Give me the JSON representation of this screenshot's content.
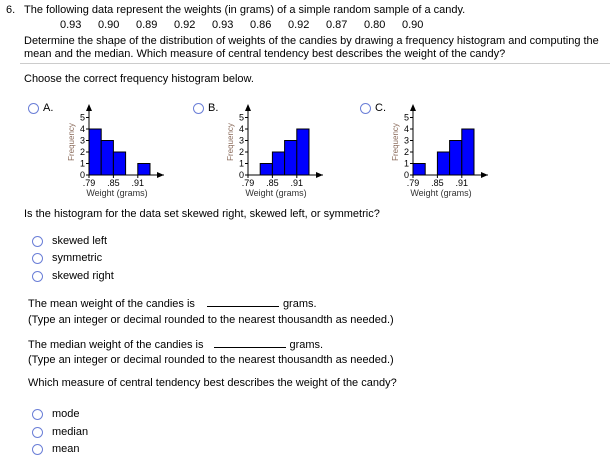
{
  "question": {
    "number": "6.",
    "intro": "The following data represent the weights (in grams) of a simple random sample of a candy.",
    "data_values": [
      "0.93",
      "0.90",
      "0.89",
      "0.92",
      "0.93",
      "0.86",
      "0.92",
      "0.87",
      "0.80",
      "0.90"
    ],
    "instructions_line1": "Determine the shape of the distribution of weights of the candies by drawing a frequency histogram and computing the",
    "instructions_line2": "mean and the median. Which measure of central tendency best describes the weight of the candy?"
  },
  "part1": {
    "prompt": "Choose the correct frequency histogram below."
  },
  "chart_data": [
    {
      "type": "bar",
      "option": "A.",
      "bin_edges": [
        0.79,
        0.82,
        0.85,
        0.88,
        0.91,
        0.94
      ],
      "values": [
        4,
        3,
        2,
        0,
        1
      ],
      "xlabel": "Weight (grams)",
      "ylabel": "Frequency",
      "xticks": [
        ".79",
        ".85",
        ".91"
      ],
      "yticks": [
        "0",
        "1",
        "2",
        "3",
        "4",
        "5"
      ],
      "ylim": [
        0,
        5
      ],
      "bar_color": "#0000ff"
    },
    {
      "type": "bar",
      "option": "B.",
      "bin_edges": [
        0.79,
        0.82,
        0.85,
        0.88,
        0.91,
        0.94
      ],
      "values": [
        0,
        1,
        2,
        3,
        4
      ],
      "xlabel": "Weight (grams)",
      "ylabel": "Frequency",
      "xticks": [
        ".79",
        ".85",
        ".91"
      ],
      "yticks": [
        "0",
        "1",
        "2",
        "3",
        "4",
        "5"
      ],
      "ylim": [
        0,
        5
      ],
      "bar_color": "#0000ff"
    },
    {
      "type": "bar",
      "option": "C.",
      "bin_edges": [
        0.79,
        0.82,
        0.85,
        0.88,
        0.91,
        0.94
      ],
      "values": [
        1,
        0,
        2,
        3,
        4
      ],
      "xlabel": "Weight (grams)",
      "ylabel": "Frequency",
      "xticks": [
        ".79",
        ".85",
        ".91"
      ],
      "yticks": [
        "0",
        "1",
        "2",
        "3",
        "4",
        "5"
      ],
      "ylim": [
        0,
        5
      ],
      "bar_color": "#0000ff"
    }
  ],
  "part2": {
    "prompt": "Is the histogram for the data set skewed right, skewed left, or symmetric?",
    "options": [
      "skewed left",
      "symmetric",
      "skewed right"
    ]
  },
  "part3": {
    "mean_prefix": "The mean weight of the candies is",
    "mean_value": "",
    "mean_suffix": "grams.",
    "mean_hint": "(Type an integer or decimal rounded to the nearest thousandth as needed.)",
    "median_prefix": "The median weight of the candies is",
    "median_value": "",
    "median_suffix": "grams.",
    "median_hint": "(Type an integer or decimal rounded to the nearest thousandth as needed.)"
  },
  "part4": {
    "prompt": "Which measure of central tendency best describes the weight of the candy?",
    "options": [
      "mode",
      "median",
      "mean"
    ]
  }
}
